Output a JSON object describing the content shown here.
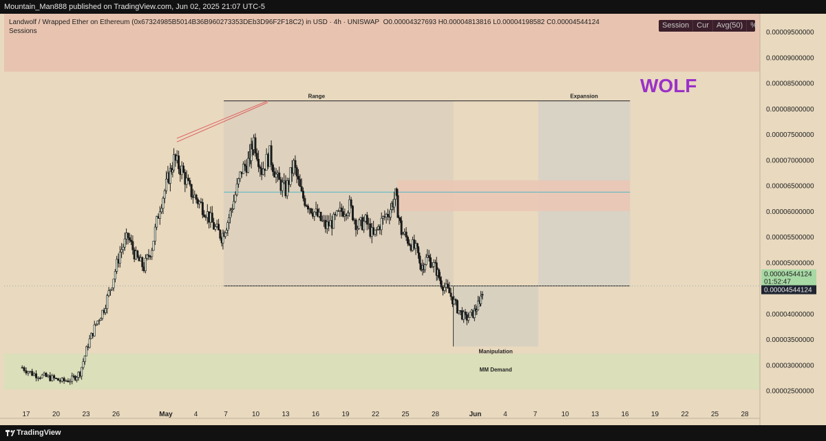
{
  "header": {
    "published": "Mountain_Man888 published on TradingView.com, Jun 02, 2025 21:07 UTC-5"
  },
  "footer": {
    "brand": "TradingView"
  },
  "legend": {
    "symbol": "Landwolf / Wrapped Ether on Ethereum (0x67324985B5014B36B960273353DEb3D96F2F18C2) in USD · 4h · UNISWAP",
    "ohlc": "O0.00004327693  H0.00004813816  L0.00004198582  C0.00004544124",
    "sessions": "Sessions",
    "toggles": [
      "Session",
      "Cur",
      "Avg(50)",
      "%"
    ]
  },
  "annotations": {
    "wolf": "WOLF",
    "range": "Range",
    "expansion": "Expansion",
    "manipulation": "Manipulation",
    "mm_demand": "MM Demand"
  },
  "price_labels": {
    "current": "0.00004544124",
    "countdown": "01:52:47",
    "crosshair": "0.00004544124"
  },
  "colors": {
    "background": "#e8d9bf",
    "upper_zone": "#e8c4b0",
    "demand_zone": "#d9dfb9",
    "range_box": "#d6cbbc",
    "supply_zone": "#eac7b5",
    "cyan_level": "#4db6c6",
    "trendline": "#e05b5b",
    "wolf_text": "#9b30c8",
    "last_price": "#a7d9a4"
  },
  "chart_data": {
    "type": "candlestick",
    "interval": "4h",
    "y_axis": {
      "min": 2.2e-05,
      "max": 9.85e-05,
      "ticks": [
        "0.00009500000",
        "0.00009000000",
        "0.00008500000",
        "0.00008000000",
        "0.00007500000",
        "0.00007000000",
        "0.00006500000",
        "0.00006000000",
        "0.00005500000",
        "0.00005000000",
        "0.00004500000",
        "0.00004000000",
        "0.00003500000",
        "0.00003000000",
        "0.00002500000"
      ],
      "tick_values": [
        9.5e-05,
        9e-05,
        8.5e-05,
        8e-05,
        7.5e-05,
        7e-05,
        6.5e-05,
        6e-05,
        5.5e-05,
        5e-05,
        4.5e-05,
        4e-05,
        3.5e-05,
        3e-05,
        2.5e-05
      ]
    },
    "x_axis": {
      "labels": [
        "17",
        "20",
        "23",
        "26",
        "May",
        "4",
        "7",
        "10",
        "13",
        "16",
        "19",
        "22",
        "25",
        "28",
        "Jun",
        "4",
        "7",
        "10",
        "13",
        "16",
        "19",
        "22",
        "25",
        "28"
      ],
      "label_days": [
        0,
        3,
        6,
        9,
        14,
        17,
        20,
        23,
        26,
        29,
        32,
        35,
        38,
        41,
        45,
        48,
        51,
        54,
        57,
        60,
        63,
        66,
        69,
        72
      ],
      "start": "Apr 17",
      "days_visible": 74
    },
    "series_close": [
      [
        -0.4,
        2.95e-05
      ],
      [
        0.6,
        2.83e-05
      ],
      [
        1.6,
        2.78e-05
      ],
      [
        2.6,
        2.74e-05
      ],
      [
        3.6,
        2.68e-05
      ],
      [
        4.6,
        2.72e-05
      ],
      [
        5.4,
        2.85e-05
      ],
      [
        6.2,
        3.4e-05
      ],
      [
        7.0,
        3.8e-05
      ],
      [
        7.8,
        4.1e-05
      ],
      [
        8.6,
        4.6e-05
      ],
      [
        9.4,
        5.2e-05
      ],
      [
        10.2,
        5.5e-05
      ],
      [
        11.0,
        5.1e-05
      ],
      [
        11.8,
        4.9e-05
      ],
      [
        12.6,
        5.3e-05
      ],
      [
        13.4,
        6.1e-05
      ],
      [
        14.2,
        6.6e-05
      ],
      [
        14.8,
        7e-05
      ],
      [
        15.6,
        6.8e-05
      ],
      [
        16.4,
        6.4e-05
      ],
      [
        17.2,
        6.2e-05
      ],
      [
        18.0,
        6e-05
      ],
      [
        18.8,
        5.7e-05
      ],
      [
        19.6,
        5.5e-05
      ],
      [
        20.2,
        5.8e-05
      ],
      [
        20.8,
        6.2e-05
      ],
      [
        21.6,
        6.8e-05
      ],
      [
        22.4,
        7e-05
      ],
      [
        22.8,
        7.4e-05
      ],
      [
        23.6,
        6.8e-05
      ],
      [
        24.4,
        7.1e-05
      ],
      [
        25.2,
        6.6e-05
      ],
      [
        26.0,
        6.4e-05
      ],
      [
        26.8,
        6.9e-05
      ],
      [
        27.6,
        6.3e-05
      ],
      [
        28.4,
        6.1e-05
      ],
      [
        29.2,
        5.9e-05
      ],
      [
        30.0,
        5.7e-05
      ],
      [
        30.8,
        5.8e-05
      ],
      [
        31.6,
        6e-05
      ],
      [
        32.4,
        6.1e-05
      ],
      [
        33.2,
        5.7e-05
      ],
      [
        34.0,
        5.8e-05
      ],
      [
        34.8,
        5.5e-05
      ],
      [
        35.6,
        5.8e-05
      ],
      [
        36.4,
        6e-05
      ],
      [
        37.0,
        6.3e-05
      ],
      [
        37.6,
        5.6e-05
      ],
      [
        38.4,
        5.4e-05
      ],
      [
        39.2,
        5.2e-05
      ],
      [
        39.6,
        4.9e-05
      ],
      [
        40.2,
        5.1e-05
      ],
      [
        41.0,
        4.9e-05
      ],
      [
        41.6,
        4.6e-05
      ],
      [
        42.4,
        4.4e-05
      ],
      [
        43.2,
        4.1e-05
      ],
      [
        44.0,
        3.9e-05
      ],
      [
        44.8,
        4e-05
      ],
      [
        45.4,
        4.2e-05
      ],
      [
        45.8,
        4.54e-05
      ]
    ],
    "annotations": {
      "range_high": 8.15e-05,
      "range_low": 4.54e-05,
      "supply_zone": [
        6e-05,
        6.6e-05
      ],
      "cyan_level": 6.37e-05,
      "mm_demand_zone": [
        2.52e-05,
        3.22e-05
      ],
      "manipulation_low": 3.36e-05,
      "upper_zone": [
        8.72e-05,
        9.85e-05
      ]
    }
  }
}
